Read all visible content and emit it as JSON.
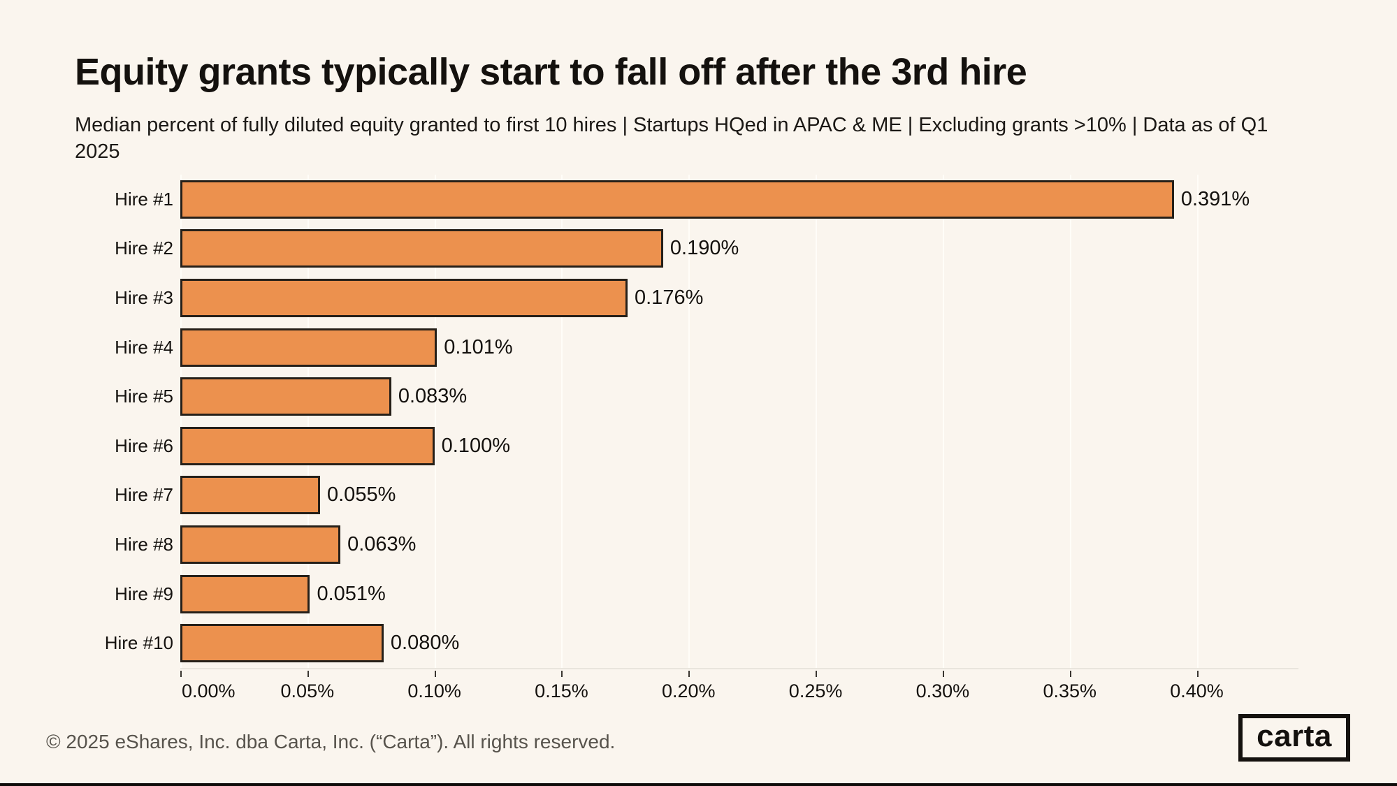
{
  "title": "Equity grants typically start to fall off after the 3rd hire",
  "subtitle": "Median percent of fully diluted equity granted to first 10 hires | Startups HQed in APAC & ME | Excluding grants >10% | Data as of Q1 2025",
  "footer": {
    "copyright": "© 2025 eShares, Inc. dba Carta, Inc. (“Carta”). All rights reserved.",
    "logo_text": "carta"
  },
  "colors": {
    "background": "#faf5ee",
    "bar_fill": "#ec914e",
    "bar_border": "#262019",
    "gridline": "#fffdf8",
    "axis_line": "#e9e5dd",
    "text_dark": "#14110e",
    "footer_text": "#57534c"
  },
  "chart_data": {
    "type": "bar",
    "orientation": "horizontal",
    "title": "Equity grants typically start to fall off after the 3rd hire",
    "xlabel": "",
    "ylabel": "",
    "unit": "percent of fully diluted equity",
    "categories": [
      "Hire #1",
      "Hire #2",
      "Hire #3",
      "Hire #4",
      "Hire #5",
      "Hire #6",
      "Hire #7",
      "Hire #8",
      "Hire #9",
      "Hire #10"
    ],
    "values": [
      0.391,
      0.19,
      0.176,
      0.101,
      0.083,
      0.1,
      0.055,
      0.063,
      0.051,
      0.08
    ],
    "value_labels": [
      "0.391%",
      "0.190%",
      "0.176%",
      "0.101%",
      "0.083%",
      "0.100%",
      "0.055%",
      "0.063%",
      "0.051%",
      "0.080%"
    ],
    "x_tick_labels": [
      "0.00%",
      "0.05%",
      "0.10%",
      "0.15%",
      "0.20%",
      "0.25%",
      "0.30%",
      "0.35%",
      "0.40%"
    ],
    "x_tick_values": [
      0.0,
      0.05,
      0.1,
      0.15,
      0.2,
      0.25,
      0.3,
      0.35,
      0.4
    ],
    "xlim": [
      0,
      0.44
    ],
    "grid": "vertical",
    "legend": "none"
  }
}
